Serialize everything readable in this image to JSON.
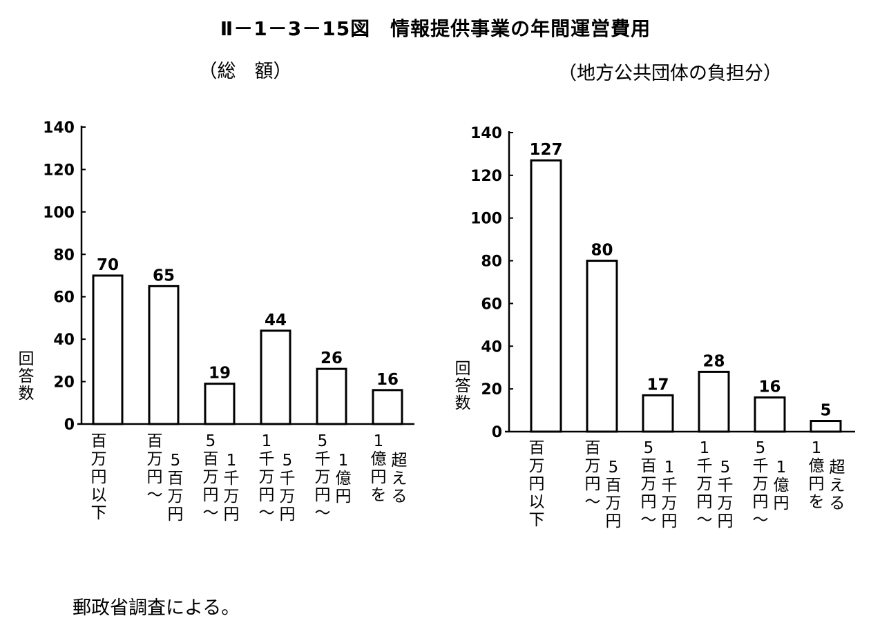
{
  "title": "Ⅱ－1－3－15図　情報提供事業の年間運営費用",
  "source": "郵政省調査による。",
  "chart_data": [
    {
      "type": "bar",
      "subtitle": "（総　額）",
      "ylabel": "回答数",
      "ylim": [
        0,
        140
      ],
      "yticks": [
        0,
        20,
        40,
        60,
        80,
        100,
        120,
        140
      ],
      "categories": [
        "百万円以下",
        "百万円～5百万円",
        "5百万円～1千万円",
        "1千万円～5千万円",
        "5千万円～1億円",
        "1億円を超える"
      ],
      "category_label_columns": [
        [
          "百万円以下"
        ],
        [
          "百万円～",
          "5百万円"
        ],
        [
          "5百万円～",
          "1千万円"
        ],
        [
          "1千万円～",
          "5千万円"
        ],
        [
          "5千万円～",
          "1億円"
        ],
        [
          "1億円を",
          "超える"
        ]
      ],
      "values": [
        70,
        65,
        19,
        44,
        26,
        16
      ],
      "data_labels": [
        "70",
        "65",
        "19",
        "44",
        "26",
        "16"
      ]
    },
    {
      "type": "bar",
      "subtitle": "（地方公共団体の負担分）",
      "ylabel": "回答数",
      "ylim": [
        0,
        140
      ],
      "yticks": [
        0,
        20,
        40,
        60,
        80,
        100,
        120,
        140
      ],
      "categories": [
        "百万円以下",
        "百万円～5百万円",
        "5百万円～1千万円",
        "1千万円～5千万円",
        "5千万円～1億円",
        "1億円を超える"
      ],
      "category_label_columns": [
        [
          "百万円以下"
        ],
        [
          "百万円～",
          "5百万円"
        ],
        [
          "5百万円～",
          "1千万円"
        ],
        [
          "1千万円～",
          "5千万円"
        ],
        [
          "5千万円～",
          "1億円"
        ],
        [
          "1億円を",
          "超える"
        ]
      ],
      "values": [
        127,
        80,
        17,
        28,
        16,
        5
      ],
      "data_labels": [
        "127",
        "80",
        "17",
        "28",
        "16",
        "5"
      ]
    }
  ]
}
